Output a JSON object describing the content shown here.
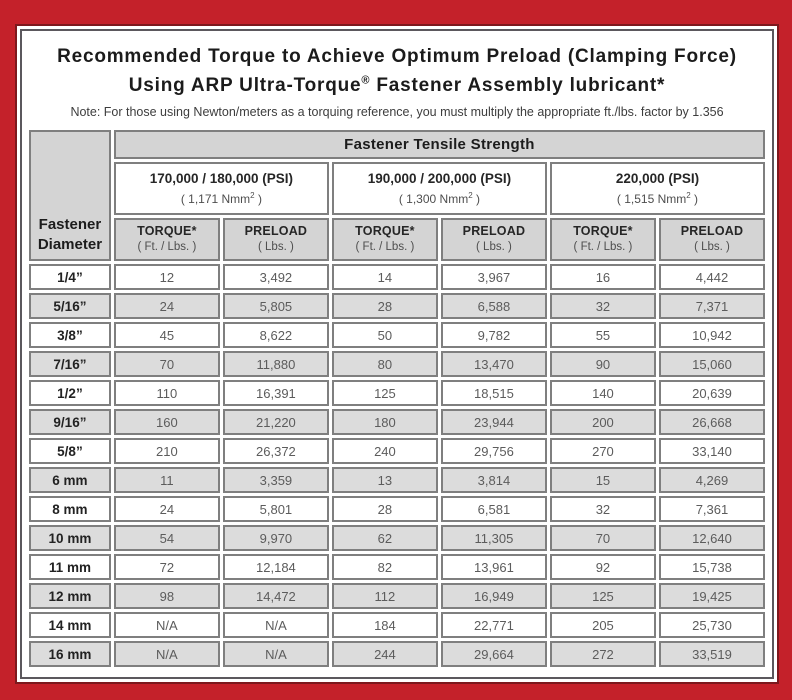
{
  "header": {
    "title_line1": "Recommended Torque to Achieve Optimum Preload (Clamping Force)",
    "title_line2_pre": "Using ARP Ultra-Torque",
    "title_line2_sup": "®",
    "title_line2_post": " Fastener Assembly lubricant*",
    "note": "Note: For those using Newton/meters as a torquing reference, you must multiply the appropriate ft./lbs. factor by 1.356"
  },
  "table": {
    "corner_line1": "Fastener",
    "corner_line2": "Diameter",
    "tensile_header": "Fastener Tensile Strength",
    "groups": [
      {
        "psi": "170,000 / 180,000 (PSI)",
        "nmm_pre": "( 1,171 Nmm",
        "nmm_sup": "2",
        "nmm_post": " )"
      },
      {
        "psi": "190,000 / 200,000 (PSI)",
        "nmm_pre": "( 1,300 Nmm",
        "nmm_sup": "2",
        "nmm_post": " )"
      },
      {
        "psi": "220,000 (PSI)",
        "nmm_pre": "( 1,515 Nmm",
        "nmm_sup": "2",
        "nmm_post": " )"
      }
    ],
    "torque_label": "TORQUE*",
    "torque_unit": "( Ft. / Lbs. )",
    "preload_label": "PRELOAD",
    "preload_unit": "( Lbs. )"
  },
  "colors": {
    "frame_red": "#c4212a",
    "frame_maroon": "#7d181d",
    "inner_border_gray": "#5b585d",
    "header_gray": "#d4d4d4",
    "row_stripe_gray": "#dcdcdc",
    "cell_border_gray": "#7f7f7f",
    "value_text": "#5c5c5c"
  },
  "chart_data": {
    "type": "table",
    "title": "Recommended Torque to Achieve Optimum Preload (Clamping Force) Using ARP Ultra-Torque® Fastener Assembly lubricant*",
    "note": "Note: For those using Newton/meters as a torquing reference, you must multiply the appropriate ft./lbs. factor by 1.356",
    "group_headers": [
      "170,000 / 180,000 (PSI) ( 1,171 Nmm2 )",
      "190,000 / 200,000 (PSI) ( 1,300 Nmm2 )",
      "220,000 (PSI) ( 1,515 Nmm2 )"
    ],
    "columns": [
      "Fastener Diameter",
      "TORQUE* ( Ft. / Lbs. ) @ 170,000/180,000 PSI",
      "PRELOAD ( Lbs. ) @ 170,000/180,000 PSI",
      "TORQUE* ( Ft. / Lbs. ) @ 190,000/200,000 PSI",
      "PRELOAD ( Lbs. ) @ 190,000/200,000 PSI",
      "TORQUE* ( Ft. / Lbs. ) @ 220,000 PSI",
      "PRELOAD ( Lbs. ) @ 220,000 PSI"
    ],
    "rows": [
      [
        "1/4”",
        "12",
        "3,492",
        "14",
        "3,967",
        "16",
        "4,442"
      ],
      [
        "5/16”",
        "24",
        "5,805",
        "28",
        "6,588",
        "32",
        "7,371"
      ],
      [
        "3/8”",
        "45",
        "8,622",
        "50",
        "9,782",
        "55",
        "10,942"
      ],
      [
        "7/16”",
        "70",
        "11,880",
        "80",
        "13,470",
        "90",
        "15,060"
      ],
      [
        "1/2”",
        "110",
        "16,391",
        "125",
        "18,515",
        "140",
        "20,639"
      ],
      [
        "9/16”",
        "160",
        "21,220",
        "180",
        "23,944",
        "200",
        "26,668"
      ],
      [
        "5/8”",
        "210",
        "26,372",
        "240",
        "29,756",
        "270",
        "33,140"
      ],
      [
        "6 mm",
        "11",
        "3,359",
        "13",
        "3,814",
        "15",
        "4,269"
      ],
      [
        "8 mm",
        "24",
        "5,801",
        "28",
        "6,581",
        "32",
        "7,361"
      ],
      [
        "10 mm",
        "54",
        "9,970",
        "62",
        "11,305",
        "70",
        "12,640"
      ],
      [
        "11 mm",
        "72",
        "12,184",
        "82",
        "13,961",
        "92",
        "15,738"
      ],
      [
        "12 mm",
        "98",
        "14,472",
        "112",
        "16,949",
        "125",
        "19,425"
      ],
      [
        "14 mm",
        "N/A",
        "N/A",
        "184",
        "22,771",
        "205",
        "25,730"
      ],
      [
        "16 mm",
        "N/A",
        "N/A",
        "244",
        "29,664",
        "272",
        "33,519"
      ]
    ]
  }
}
